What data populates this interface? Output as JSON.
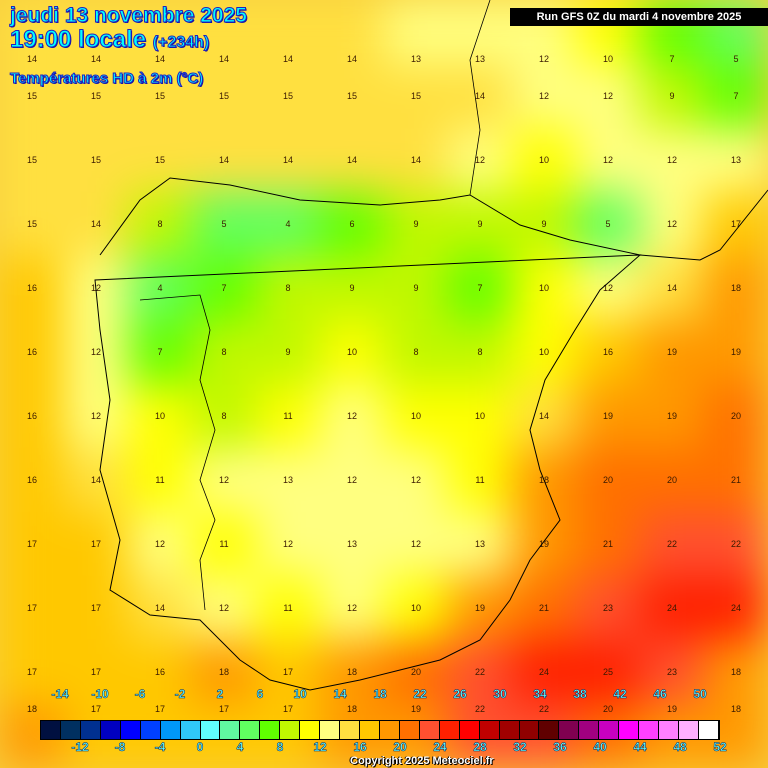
{
  "header": {
    "date": "jeudi 13 novembre 2025",
    "time": "19:00 locale",
    "offset": "(+234h)",
    "parameter": "Températures HD à 2m (°C)",
    "run": "Run GFS 0Z du mardi 4 novembre 2025"
  },
  "temperature_field": [
    [
      14,
      14,
      14,
      14,
      14,
      14,
      13,
      13,
      12,
      10,
      7,
      5
    ],
    [
      15,
      15,
      15,
      15,
      15,
      15,
      15,
      14,
      12,
      12,
      9,
      7
    ],
    [
      15,
      15,
      15,
      14,
      14,
      14,
      14,
      12,
      10,
      12,
      12,
      13
    ],
    [
      15,
      14,
      8,
      5,
      4,
      6,
      9,
      9,
      9,
      5,
      12,
      17
    ],
    [
      16,
      12,
      4,
      7,
      8,
      9,
      9,
      7,
      10,
      12,
      14,
      18
    ],
    [
      16,
      12,
      7,
      8,
      9,
      10,
      8,
      8,
      10,
      16,
      19,
      19
    ],
    [
      16,
      12,
      10,
      8,
      11,
      12,
      10,
      10,
      14,
      19,
      19,
      20
    ],
    [
      16,
      14,
      11,
      12,
      13,
      12,
      12,
      11,
      18,
      20,
      20,
      21
    ],
    [
      17,
      17,
      12,
      11,
      12,
      13,
      12,
      13,
      19,
      21,
      22,
      22
    ],
    [
      17,
      17,
      14,
      12,
      11,
      12,
      10,
      19,
      21,
      23,
      24,
      24
    ],
    [
      17,
      17,
      16,
      18,
      17,
      18,
      20,
      22,
      24,
      25,
      23,
      18
    ],
    [
      18,
      17,
      17,
      17,
      17,
      18,
      19,
      22,
      22,
      20,
      19,
      18
    ]
  ],
  "legend": {
    "colors": [
      "#001040",
      "#003060",
      "#003090",
      "#0000c0",
      "#0000ff",
      "#0040ff",
      "#0098f8",
      "#30c8f8",
      "#60ffff",
      "#60f8a0",
      "#60ff60",
      "#60ff00",
      "#c0f800",
      "#ffff00",
      "#ffff80",
      "#ffe040",
      "#ffc800",
      "#ff9800",
      "#ff7000",
      "#ff5030",
      "#ff2000",
      "#ff0000",
      "#c00000",
      "#a00000",
      "#900000",
      "#600000",
      "#800050",
      "#a00080",
      "#c800c0",
      "#ff00ff",
      "#ff40ff",
      "#ff80ff",
      "#ffb0ff",
      "#ffffff"
    ],
    "top_labels": [
      "-14",
      "-10",
      "-6",
      "-2",
      "2",
      "6",
      "10",
      "14",
      "18",
      "22",
      "26",
      "30",
      "34",
      "38",
      "42",
      "46",
      "50"
    ],
    "bottom_labels": [
      "-12",
      "-8",
      "-4",
      "0",
      "4",
      "8",
      "12",
      "16",
      "20",
      "24",
      "28",
      "32",
      "36",
      "40",
      "44",
      "48",
      "52"
    ]
  },
  "copyright": "Copyright 2025 Meteociel.fr"
}
